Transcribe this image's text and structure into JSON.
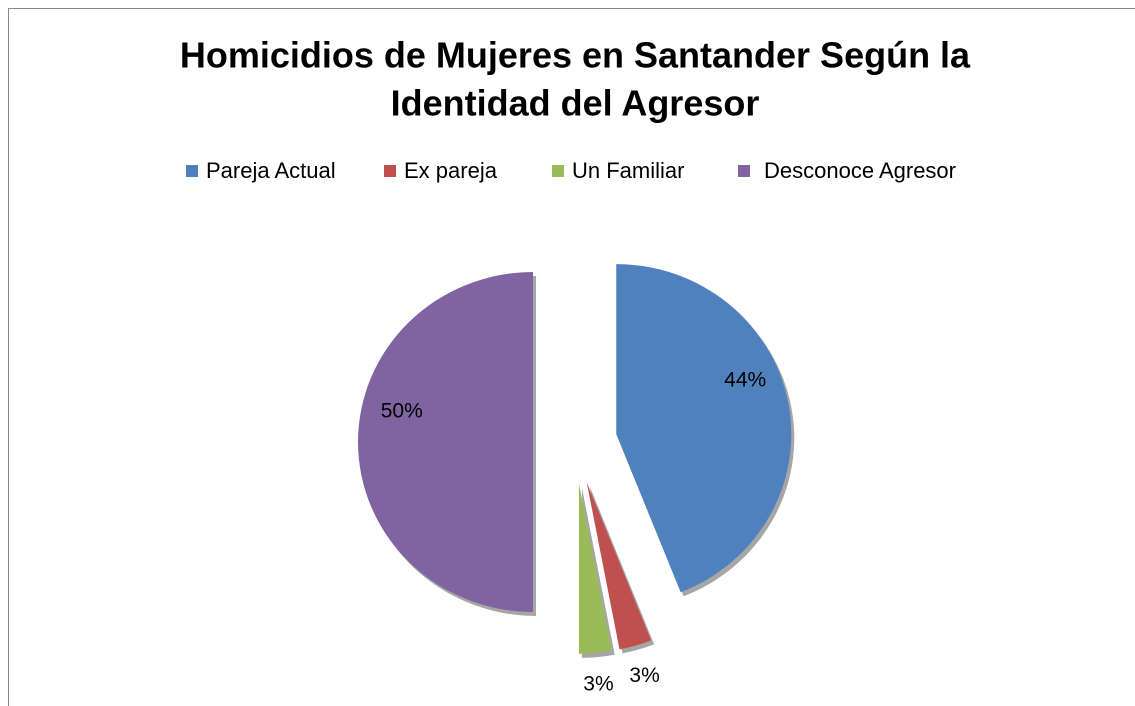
{
  "chart_data": {
    "type": "pie",
    "title": [
      "Homicidios de Mujeres en Santander Según la",
      "Identidad del Agresor"
    ],
    "categories": [
      "Pareja Actual",
      "Ex pareja",
      "Un Familiar",
      "Desconoce Agresor"
    ],
    "values": [
      44,
      3,
      3,
      50
    ],
    "value_labels": [
      "44%",
      "3%",
      "3%",
      "50%"
    ],
    "colors": [
      "#4f81bd",
      "#c0504d",
      "#9bbb59",
      "#8064a2"
    ],
    "legend": "top"
  }
}
